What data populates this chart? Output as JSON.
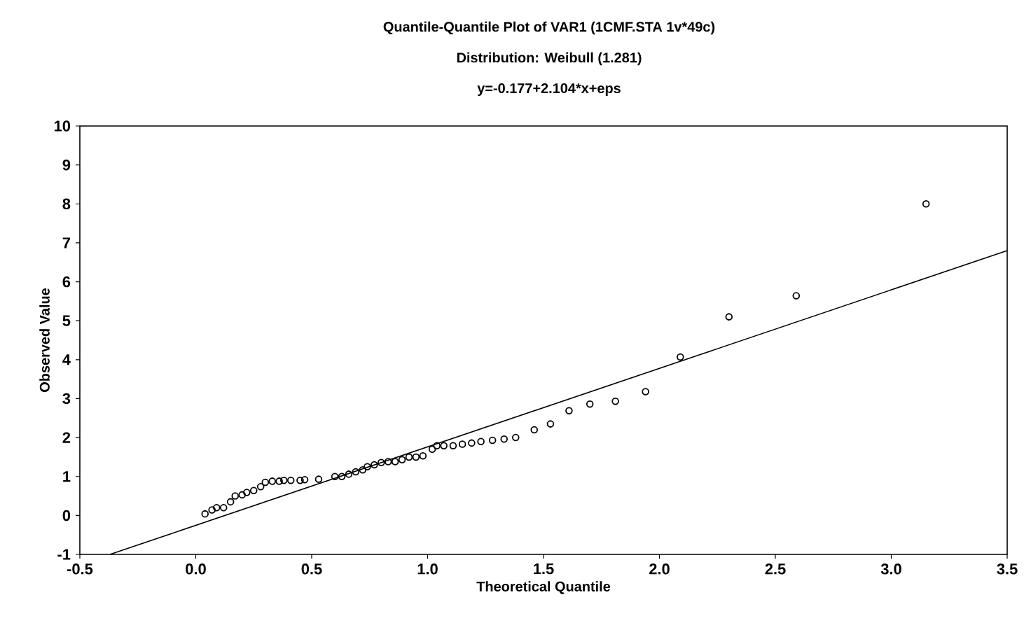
{
  "chart_data": {
    "type": "scatter",
    "title": "Quantile-Quantile Plot of VAR1 (1CMF.STA 1v*49c)",
    "subtitle": "Distribution: Weibull (1.281)",
    "annotations": [
      "y=-0.177+2.104*x+eps"
    ],
    "xlabel": "Theoretical Quantile",
    "ylabel": "Observed Value",
    "xlim": [
      -0.5,
      3.5
    ],
    "xticks": [
      {
        "value": -0.5,
        "label": "-0.5"
      },
      {
        "value": 0,
        "label": "0.0"
      },
      {
        "value": 0.5,
        "label": "0.5"
      },
      {
        "value": 1,
        "label": "1.0"
      },
      {
        "value": 1.5,
        "label": "1.5"
      },
      {
        "value": 2,
        "label": "2.0"
      },
      {
        "value": 2.5,
        "label": "2.5"
      },
      {
        "value": 3,
        "label": "3.0"
      },
      {
        "value": 3.5,
        "label": "3.5"
      }
    ],
    "ylim": [
      -1,
      10
    ],
    "yticks": [
      -1,
      0,
      1,
      2,
      3,
      4,
      5,
      6,
      7,
      8,
      9,
      10
    ],
    "grid": false,
    "series": [
      {
        "color": "#000000",
        "marker": "circle",
        "x": [
          0.04,
          0.07,
          0.09,
          0.12,
          0.15,
          0.17,
          0.2,
          0.22,
          0.25,
          0.28,
          0.3,
          0.33,
          0.36,
          0.38,
          0.41,
          0.45,
          0.47,
          0.53,
          0.6,
          0.63,
          0.66,
          0.69,
          0.72,
          0.74,
          0.77,
          0.8,
          0.83,
          0.86,
          0.89,
          0.92,
          0.95,
          0.98,
          1.02,
          1.04,
          1.07,
          1.11,
          1.15,
          1.19,
          1.23,
          1.28,
          1.33,
          1.38,
          1.46,
          1.53,
          1.61,
          1.7,
          1.81,
          1.94,
          2.09,
          2.3,
          2.59,
          3.15
        ],
        "values": [
          0.04,
          0.14,
          0.2,
          0.2,
          0.35,
          0.5,
          0.53,
          0.59,
          0.64,
          0.74,
          0.85,
          0.88,
          0.88,
          0.9,
          0.9,
          0.9,
          0.92,
          0.93,
          1.0,
          1.0,
          1.06,
          1.12,
          1.17,
          1.25,
          1.3,
          1.36,
          1.38,
          1.38,
          1.43,
          1.5,
          1.5,
          1.53,
          1.7,
          1.79,
          1.79,
          1.79,
          1.83,
          1.86,
          1.9,
          1.93,
          1.96,
          2.0,
          2.2,
          2.35,
          2.69,
          2.86,
          2.93,
          3.18,
          4.07,
          5.1,
          5.64,
          8.0
        ]
      },
      {
        "type": "line",
        "color": "#000000",
        "marker": "none",
        "line_style": "solid",
        "x": [
          -0.37,
          3.5
        ],
        "values": [
          -1,
          6.8
        ]
      }
    ]
  }
}
